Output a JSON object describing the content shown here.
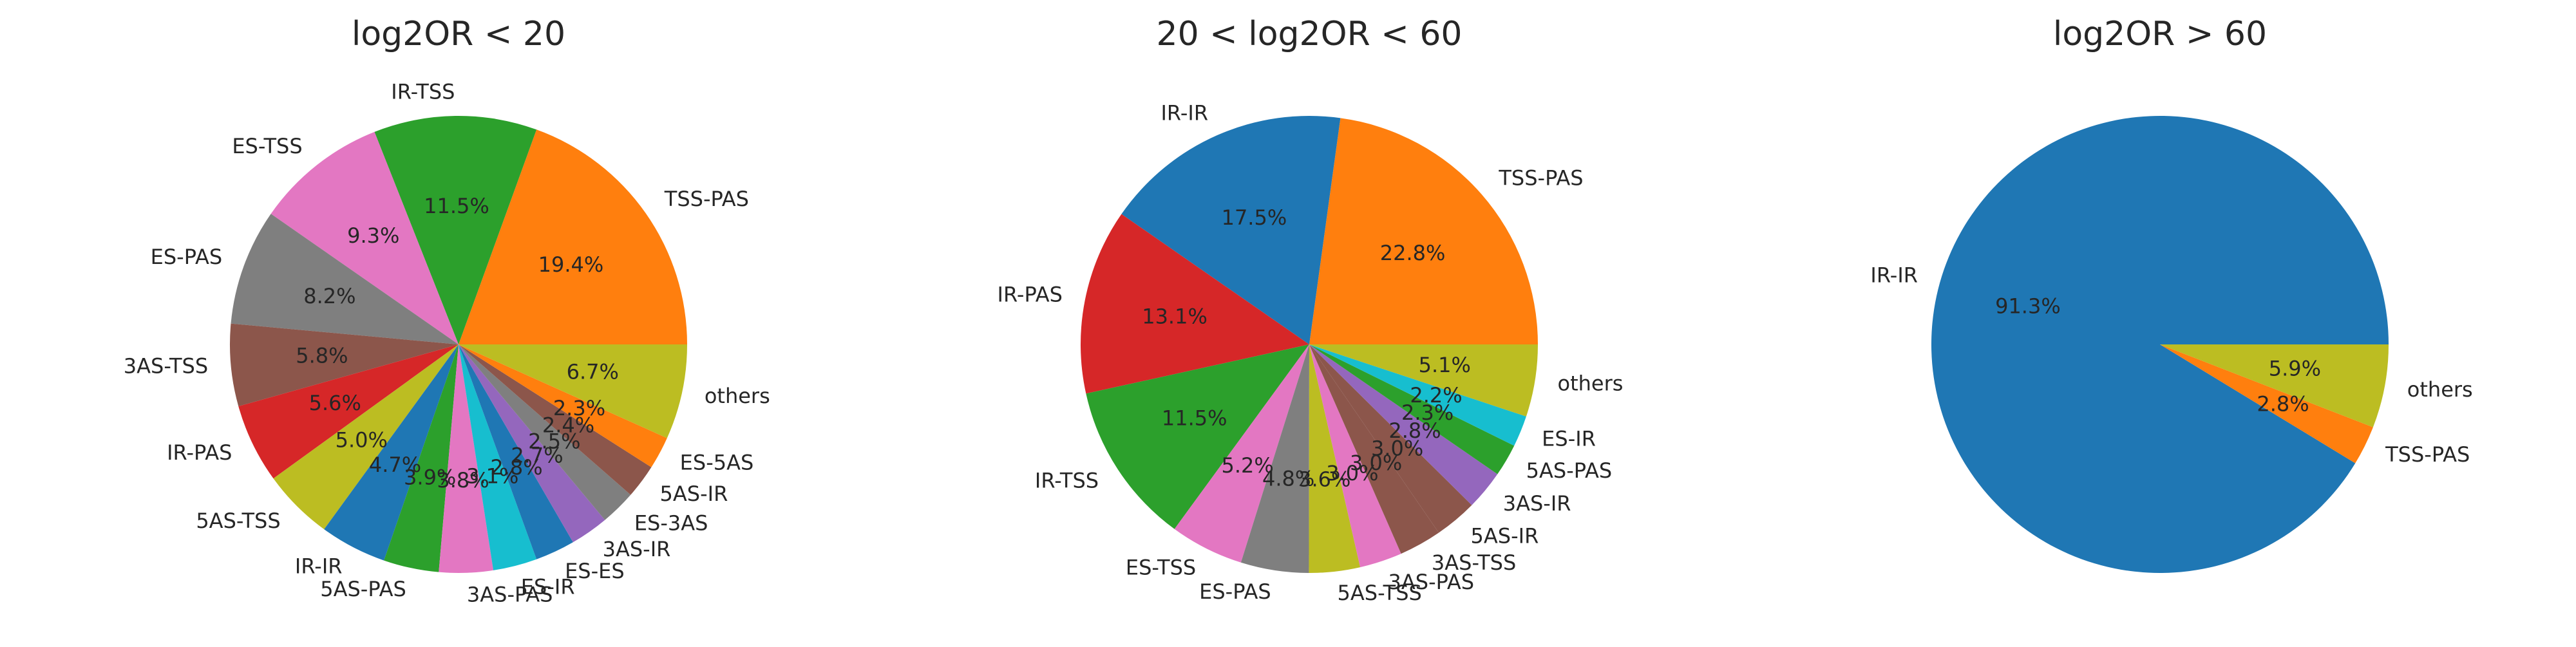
{
  "chart_data": [
    {
      "type": "pie",
      "title": "log2OR < 20",
      "slices": [
        {
          "label": "TSS-PAS",
          "value": 19.4,
          "pct_text": "19.4%",
          "color": "#ff7f0e"
        },
        {
          "label": "IR-TSS",
          "value": 11.5,
          "pct_text": "11.5%",
          "color": "#2ca02c"
        },
        {
          "label": "ES-TSS",
          "value": 9.3,
          "pct_text": "9.3%",
          "color": "#e377c2"
        },
        {
          "label": "ES-PAS",
          "value": 8.2,
          "pct_text": "8.2%",
          "color": "#7f7f7f"
        },
        {
          "label": "3AS-TSS",
          "value": 5.8,
          "pct_text": "5.8%",
          "color": "#8c564b"
        },
        {
          "label": "IR-PAS",
          "value": 5.6,
          "pct_text": "5.6%",
          "color": "#d62728"
        },
        {
          "label": "5AS-TSS",
          "value": 5.0,
          "pct_text": "5.0%",
          "color": "#bcbd22"
        },
        {
          "label": "IR-IR",
          "value": 4.7,
          "pct_text": "4.7%",
          "color": "#1f77b4"
        },
        {
          "label": "5AS-PAS",
          "value": 3.9,
          "pct_text": "3.9%",
          "color": "#2ca02c"
        },
        {
          "label": "3AS-PAS",
          "value": 3.8,
          "pct_text": "3.8%",
          "color": "#e377c2"
        },
        {
          "label": "ES-IR",
          "value": 3.1,
          "pct_text": "3.1%",
          "color": "#17becf"
        },
        {
          "label": "ES-ES",
          "value": 2.8,
          "pct_text": "2.8%",
          "color": "#1f77b4"
        },
        {
          "label": "3AS-IR",
          "value": 2.7,
          "pct_text": "2.7%",
          "color": "#9467bd"
        },
        {
          "label": "ES-3AS",
          "value": 2.5,
          "pct_text": "2.5%",
          "color": "#7f7f7f"
        },
        {
          "label": "5AS-IR",
          "value": 2.4,
          "pct_text": "2.4%",
          "color": "#8c564b"
        },
        {
          "label": "ES-5AS",
          "value": 2.3,
          "pct_text": "2.3%",
          "color": "#ff7f0e"
        },
        {
          "label": "others",
          "value": 6.7,
          "pct_text": "6.7%",
          "color": "#bcbd22"
        }
      ]
    },
    {
      "type": "pie",
      "title": "20 < log2OR < 60",
      "slices": [
        {
          "label": "TSS-PAS",
          "value": 22.8,
          "pct_text": "22.8%",
          "color": "#ff7f0e"
        },
        {
          "label": "IR-IR",
          "value": 17.5,
          "pct_text": "17.5%",
          "color": "#1f77b4"
        },
        {
          "label": "IR-PAS",
          "value": 13.1,
          "pct_text": "13.1%",
          "color": "#d62728"
        },
        {
          "label": "IR-TSS",
          "value": 11.5,
          "pct_text": "11.5%",
          "color": "#2ca02c"
        },
        {
          "label": "ES-TSS",
          "value": 5.2,
          "pct_text": "5.2%",
          "color": "#e377c2"
        },
        {
          "label": "ES-PAS",
          "value": 4.8,
          "pct_text": "4.8%",
          "color": "#7f7f7f"
        },
        {
          "label": "5AS-TSS",
          "value": 3.6,
          "pct_text": "3.6%",
          "color": "#bcbd22"
        },
        {
          "label": "3AS-PAS",
          "value": 3.0,
          "pct_text": "3.0%",
          "color": "#e377c2"
        },
        {
          "label": "3AS-TSS",
          "value": 3.0,
          "pct_text": "3.0%",
          "color": "#8c564b"
        },
        {
          "label": "5AS-IR",
          "value": 3.0,
          "pct_text": "3.0%",
          "color": "#8c564b"
        },
        {
          "label": "3AS-IR",
          "value": 2.8,
          "pct_text": "2.8%",
          "color": "#9467bd"
        },
        {
          "label": "5AS-PAS",
          "value": 2.3,
          "pct_text": "2.3%",
          "color": "#2ca02c"
        },
        {
          "label": "ES-IR",
          "value": 2.2,
          "pct_text": "2.2%",
          "color": "#17becf"
        },
        {
          "label": "others",
          "value": 5.1,
          "pct_text": "5.1%",
          "color": "#bcbd22"
        }
      ]
    },
    {
      "type": "pie",
      "title": "log2OR > 60",
      "slices": [
        {
          "label": "IR-IR",
          "value": 91.3,
          "pct_text": "91.3%",
          "color": "#1f77b4"
        },
        {
          "label": "TSS-PAS",
          "value": 2.8,
          "pct_text": "2.8%",
          "color": "#ff7f0e"
        },
        {
          "label": "others",
          "value": 5.9,
          "pct_text": "5.9%",
          "color": "#bcbd22"
        }
      ]
    }
  ]
}
